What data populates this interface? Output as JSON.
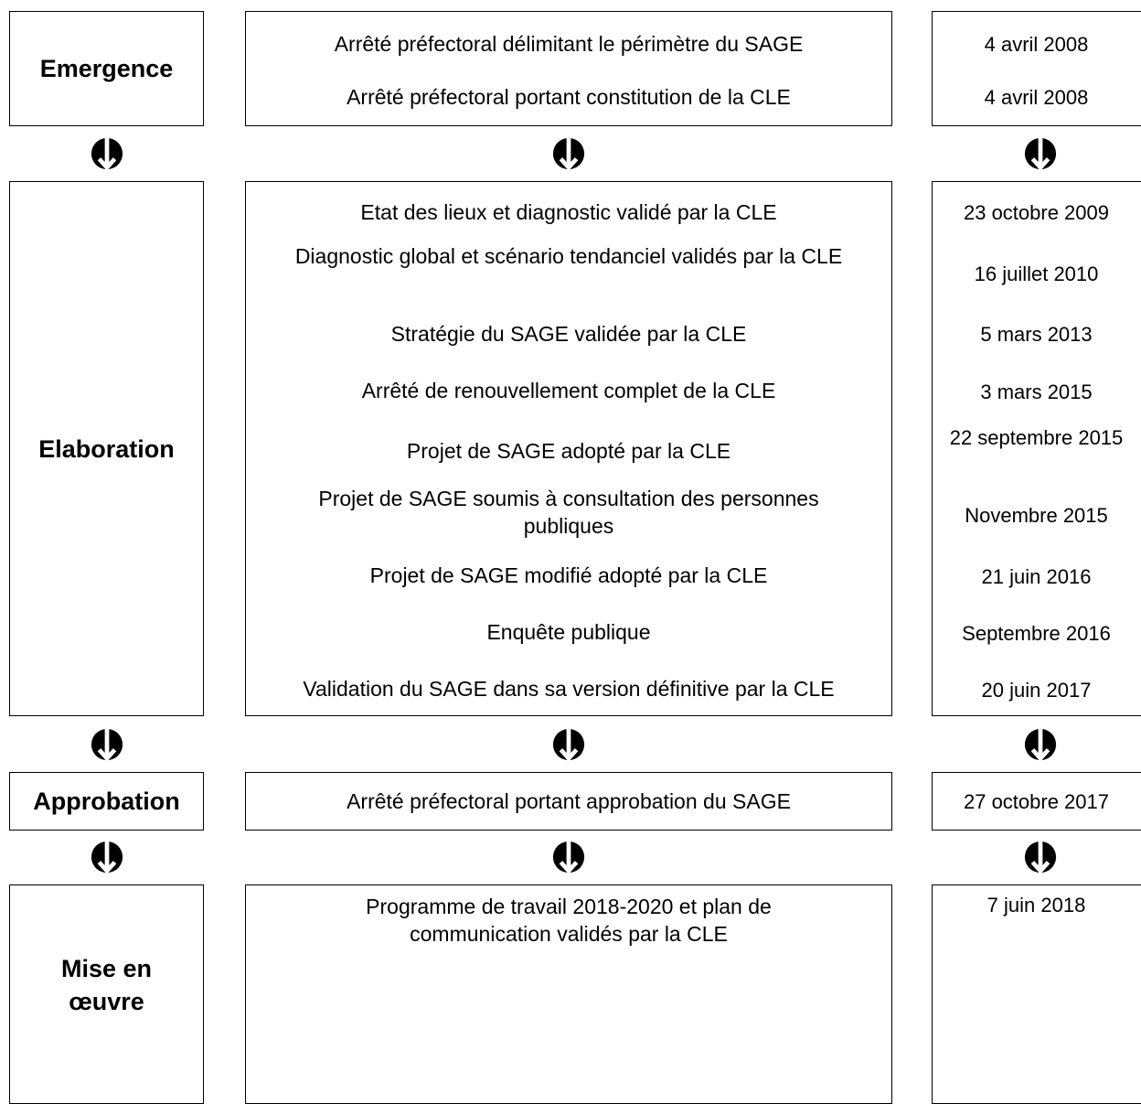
{
  "phases": [
    {
      "label": "Emergence",
      "steps": [
        {
          "text": "Arrêté préfectoral délimitant le périmètre du SAGE",
          "date": "4 avril 2008"
        },
        {
          "text": "Arrêté préfectoral portant constitution de la CLE",
          "date": "4 avril 2008"
        }
      ]
    },
    {
      "label": "Elaboration",
      "steps": [
        {
          "text": "Etat des lieux et diagnostic validé par la CLE",
          "date": "23 octobre 2009"
        },
        {
          "text": "Diagnostic global et scénario tendanciel validés par la CLE",
          "date": "16 juillet 2010"
        },
        {
          "text": "Stratégie du SAGE validée par la CLE",
          "date": "5 mars 2013"
        },
        {
          "text": "Arrêté de renouvellement complet de la CLE",
          "date": "3 mars 2015"
        },
        {
          "text": "Projet de SAGE adopté par la CLE",
          "date": "22 septembre 2015"
        },
        {
          "text": "Projet de SAGE soumis à consultation des personnes publiques",
          "date": "Novembre 2015"
        },
        {
          "text": "Projet de SAGE modifié adopté par la CLE",
          "date": "21 juin 2016"
        },
        {
          "text": "Enquête publique",
          "date": "Septembre 2016"
        },
        {
          "text": "Validation du SAGE dans sa version définitive par la CLE",
          "date": "20 juin 2017"
        }
      ]
    },
    {
      "label": "Approbation",
      "steps": [
        {
          "text": "Arrêté préfectoral portant approbation du SAGE",
          "date": "27 octobre 2017"
        }
      ]
    },
    {
      "label": "Mise en œuvre",
      "steps": [
        {
          "text": "Programme de travail 2018-2020 et plan de communication validés par la CLE",
          "date": "7 juin 2018"
        }
      ]
    }
  ]
}
